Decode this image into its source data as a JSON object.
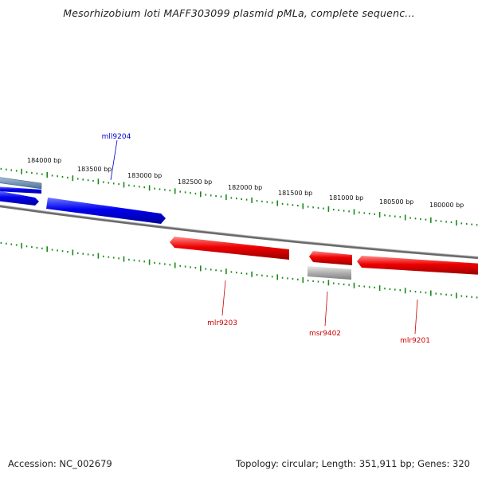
{
  "title": "Mesorhizobium loti MAFF303099 plasmid pMLa, complete sequenc...",
  "footer": {
    "accession": "Accession: NC_002679",
    "summary": "Topology: circular; Length: 351,911 bp; Genes: 320"
  },
  "ruler_labels": [
    "184000 bp",
    "183500 bp",
    "183000 bp",
    "182500 bp",
    "182000 bp",
    "181500 bp",
    "181000 bp",
    "180500 bp",
    "180000 bp"
  ],
  "genes": [
    {
      "name": "mll9204",
      "strand": "minus",
      "color": "#0000cc"
    },
    {
      "name": "mlr9203",
      "strand": "plus",
      "color": "#cc0000"
    },
    {
      "name": "msr9402",
      "strand": "plus",
      "color": "#cc0000"
    },
    {
      "name": "mlr9201",
      "strand": "plus",
      "color": "#cc0000"
    }
  ],
  "colors": {
    "minus_strand": "#0000ee",
    "plus_strand": "#ee0000",
    "pseudo": "#b0b0b0",
    "backbone": "#888888",
    "ticks": "#1a8a1a"
  }
}
